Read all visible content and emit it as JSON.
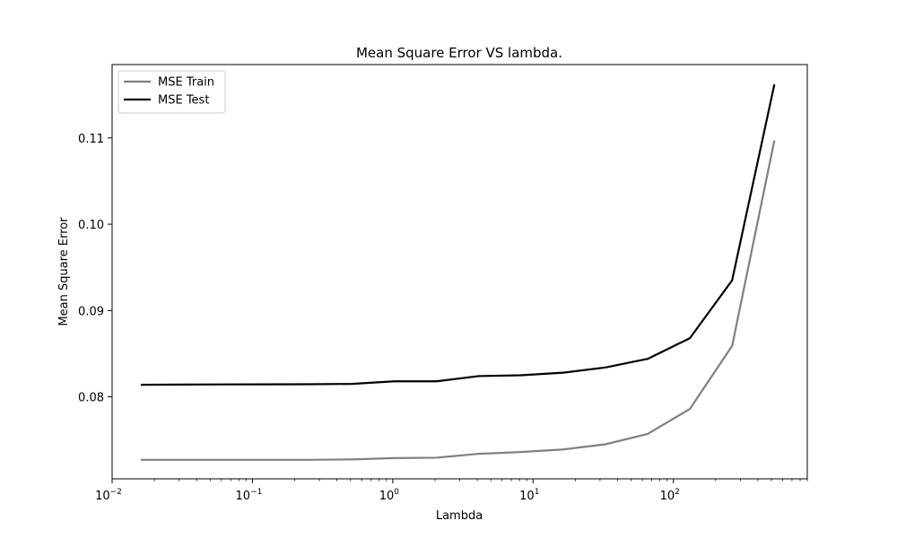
{
  "chart_data": {
    "type": "line",
    "title": "Mean Square Error VS lambda.",
    "xlabel": "Lambda",
    "ylabel": "Mean Square Error",
    "xscale": "log",
    "xlim": [
      0.01,
      900
    ],
    "ylim": [
      0.0705,
      0.1185
    ],
    "xticks": [
      {
        "value": 0.01,
        "base": "10",
        "exp": "−2"
      },
      {
        "value": 0.1,
        "base": "10",
        "exp": "−1"
      },
      {
        "value": 1,
        "base": "10",
        "exp": "0"
      },
      {
        "value": 10,
        "base": "10",
        "exp": "1"
      },
      {
        "value": 100,
        "base": "10",
        "exp": "2"
      }
    ],
    "yticks": [
      {
        "value": 0.08,
        "label": "0.08"
      },
      {
        "value": 0.09,
        "label": "0.09"
      },
      {
        "value": 0.1,
        "label": "0.10"
      },
      {
        "value": 0.11,
        "label": "0.11"
      }
    ],
    "grid": false,
    "legend_position": "top-left",
    "x": [
      0.016,
      0.032,
      0.064,
      0.128,
      0.256,
      0.512,
      1.024,
      2.048,
      4.096,
      8.192,
      16.384,
      32.768,
      65.536,
      131.072,
      262.144,
      524.288
    ],
    "series": [
      {
        "name": "MSE Train",
        "color": "#808080",
        "values": [
          0.0727,
          0.0727,
          0.0727,
          0.0727,
          0.0727,
          0.07275,
          0.0729,
          0.07295,
          0.0734,
          0.0736,
          0.0739,
          0.0745,
          0.0757,
          0.0786,
          0.0859,
          0.1097
        ]
      },
      {
        "name": "MSE Test",
        "color": "#000000",
        "values": [
          0.0814,
          0.08142,
          0.08144,
          0.08145,
          0.08146,
          0.0815,
          0.0818,
          0.0818,
          0.0824,
          0.0825,
          0.0828,
          0.0834,
          0.0844,
          0.0868,
          0.0935,
          0.1162
        ]
      }
    ]
  }
}
